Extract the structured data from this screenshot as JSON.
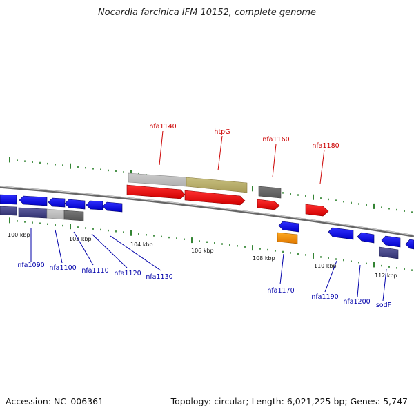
{
  "title": "Nocardia farcinica IFM 10152, complete genome",
  "footer": {
    "accession": "Accession: NC_006361",
    "summary": "Topology: circular; Length: 6,021,225 bp; Genes: 5,747"
  },
  "colors": {
    "backbone": "#777777",
    "cds_forward": "#ff0000",
    "cds_reverse": "#0000ff",
    "tick": "#006600",
    "label_forward": "#cc0000",
    "label_reverse": "#0000aa",
    "orange": "#ff9900"
  },
  "scale_labels": [
    "100 kbp",
    "102 kbp",
    "104 kbp",
    "106 kbp",
    "108 kbp",
    "110 kbp",
    "112 kbp"
  ],
  "forward_labels": [
    "nfa1140",
    "htpG",
    "nfa1160",
    "nfa1180"
  ],
  "reverse_labels": [
    "nfa1090",
    "nfa1100",
    "nfa1110",
    "nfa1120",
    "nfa1130",
    "nfa1170",
    "nfa1190",
    "nfa1200",
    "sodF"
  ]
}
